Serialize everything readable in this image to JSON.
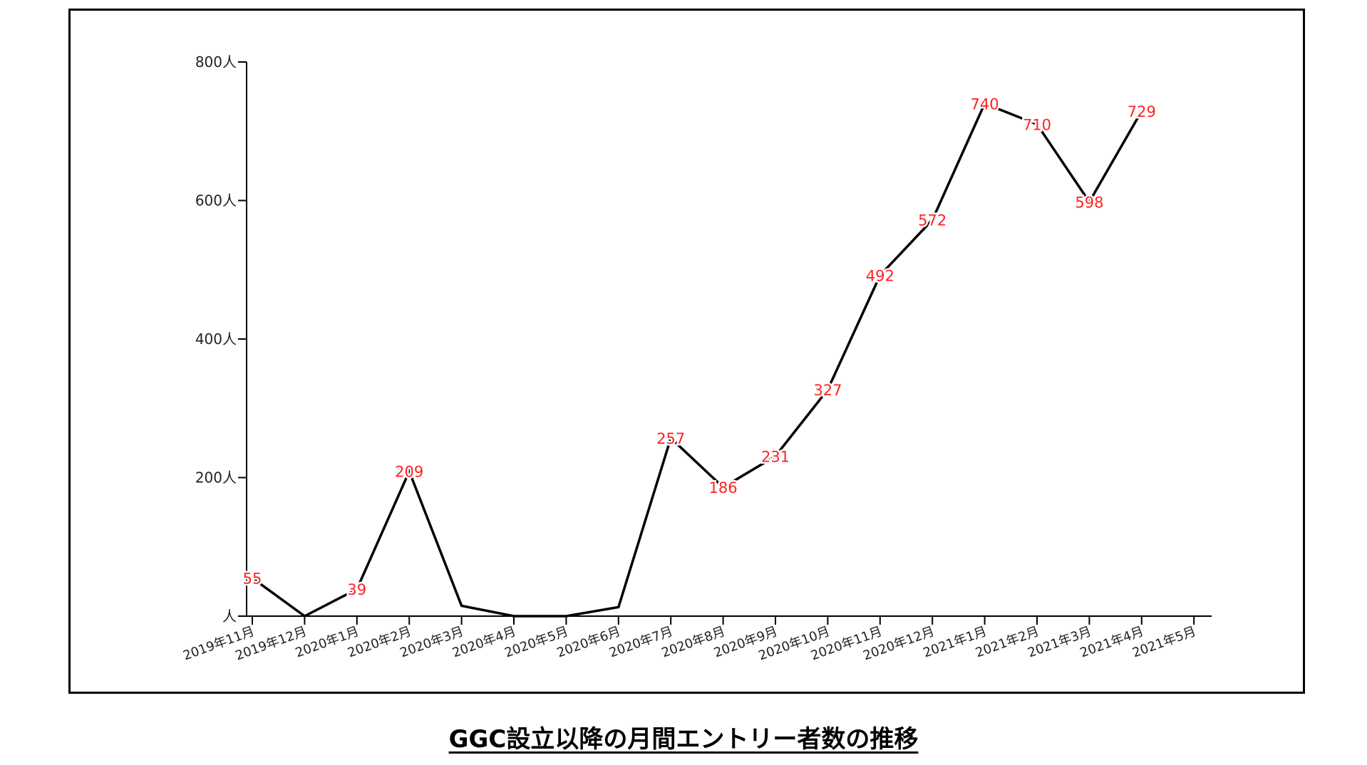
{
  "caption": "GGC設立以降の月間エントリー者数の推移",
  "colors": {
    "line": "#000000",
    "data_label": "#ff2222",
    "axis": "#000000",
    "frame": "#000000"
  },
  "chart_data": {
    "type": "line",
    "title": "GGC設立以降の月間エントリー者数の推移",
    "xlabel": "",
    "ylabel": "",
    "categories": [
      "2019年11月",
      "2019年12月",
      "2020年1月",
      "2020年2月",
      "2020年3月",
      "2020年4月",
      "2020年5月",
      "2020年6月",
      "2020年7月",
      "2020年8月",
      "2020年9月",
      "2020年10月",
      "2020年11月",
      "2020年12月",
      "2021年1月",
      "2021年2月",
      "2021年3月",
      "2021年4月",
      "2021年5月"
    ],
    "yticks": [
      {
        "value": 0,
        "label": "人"
      },
      {
        "value": 200,
        "label": "200人"
      },
      {
        "value": 400,
        "label": "400人"
      },
      {
        "value": 600,
        "label": "600人"
      },
      {
        "value": 800,
        "label": "800人"
      }
    ],
    "ylim": [
      0,
      800
    ],
    "series": [
      {
        "values": [
          55,
          0,
          39,
          209,
          15,
          0,
          0,
          13,
          257,
          186,
          231,
          327,
          492,
          572,
          740,
          710,
          598,
          729,
          null
        ],
        "labels": [
          "55",
          "",
          "39",
          "209",
          "",
          "",
          "",
          "",
          "257",
          "186",
          "231",
          "327",
          "492",
          "572",
          "740",
          "710",
          "598",
          "729",
          ""
        ]
      }
    ],
    "grid": false,
    "legend": "none"
  }
}
